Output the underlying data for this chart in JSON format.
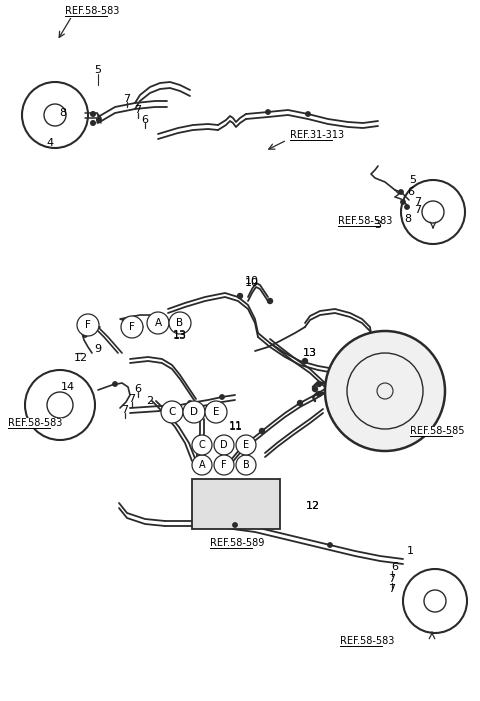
{
  "bg_color": "#ffffff",
  "line_color": "#2a2a2a",
  "text_color": "#000000",
  "figsize": [
    4.8,
    7.01
  ],
  "dpi": 100,
  "xlim": [
    0,
    480
  ],
  "ylim": [
    0,
    701
  ]
}
